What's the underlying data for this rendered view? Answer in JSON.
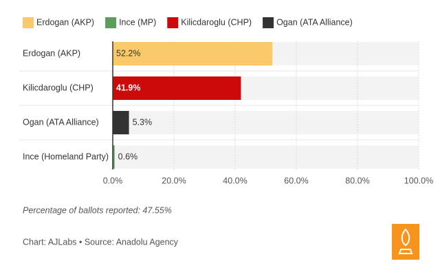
{
  "chart_data": {
    "type": "hbar",
    "legend": [
      {
        "name": "Erdogan (AKP)",
        "color": "#f9c96a"
      },
      {
        "name": "Ince (MP)",
        "color": "#5b9e5b"
      },
      {
        "name": "Kilicdaroglu (CHP)",
        "color": "#cc0a0a"
      },
      {
        "name": "Ogan (ATA Alliance)",
        "color": "#333333"
      }
    ],
    "categories": [
      "Erdogan (AKP)",
      "Kilicdaroglu (CHP)",
      "Ogan (ATA Alliance)",
      "Ince (Homeland Party)"
    ],
    "values": [
      52.2,
      41.9,
      5.3,
      0.6
    ],
    "value_labels": [
      "52.2%",
      "41.9%",
      "5.3%",
      "0.6%"
    ],
    "colors": [
      "#f9c96a",
      "#cc0a0a",
      "#333333",
      "#5b9e5b"
    ],
    "xlim": [
      0,
      100
    ],
    "xticks": [
      {
        "value": 0,
        "label": "0.0%"
      },
      {
        "value": 20,
        "label": "20.0%"
      },
      {
        "value": 40,
        "label": "40.0%"
      },
      {
        "value": 60,
        "label": "60.0%"
      },
      {
        "value": 80,
        "label": "80.0%"
      },
      {
        "value": 100,
        "label": "100.0%"
      }
    ],
    "grid": true,
    "note": "Percentage of ballots reported: 47.55%",
    "source": "Chart: AJLabs • Source: Anadolu Agency"
  }
}
